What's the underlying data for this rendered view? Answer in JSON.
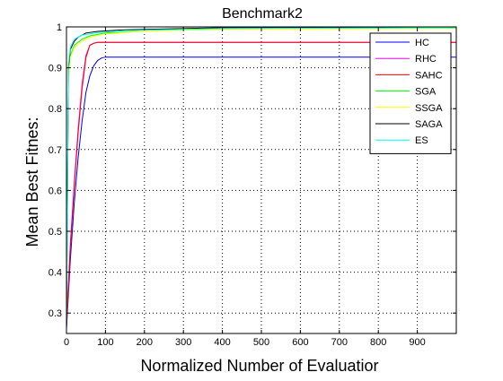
{
  "chart_data": {
    "type": "line",
    "title": "Benchmark2",
    "xlabel": "Normalized Number of Evaluatior",
    "ylabel": "Mean Best Fitnes:",
    "xlim": [
      0,
      1000
    ],
    "ylim": [
      0.25,
      1.0
    ],
    "xticks": [
      0,
      100,
      200,
      300,
      400,
      500,
      600,
      700,
      800,
      900
    ],
    "xtick_labels": [
      "0",
      "100",
      "200",
      "300",
      "400",
      "500",
      "600",
      "700",
      "800",
      "900"
    ],
    "yticks": [
      0.3,
      0.4,
      0.5,
      0.6,
      0.7,
      0.8,
      0.9,
      1.0
    ],
    "ytick_labels": [
      "0.3",
      "0.4",
      "0.5",
      "0.6",
      "0.7",
      "0.8",
      "0.9",
      "1"
    ],
    "grid": true,
    "grid_style": "dotted",
    "legend_position": "top-right",
    "series": [
      {
        "name": "HC",
        "color": "#0000ff",
        "points": [
          [
            0,
            0.26
          ],
          [
            10,
            0.43
          ],
          [
            20,
            0.57
          ],
          [
            30,
            0.68
          ],
          [
            40,
            0.77
          ],
          [
            50,
            0.84
          ],
          [
            60,
            0.88
          ],
          [
            70,
            0.905
          ],
          [
            80,
            0.918
          ],
          [
            90,
            0.924
          ],
          [
            100,
            0.926
          ],
          [
            1000,
            0.926
          ]
        ]
      },
      {
        "name": "RHC",
        "color": "#ff00ff",
        "points": [
          [
            0,
            0.27
          ],
          [
            10,
            0.47
          ],
          [
            20,
            0.62
          ],
          [
            30,
            0.75
          ],
          [
            40,
            0.86
          ],
          [
            50,
            0.93
          ],
          [
            60,
            0.955
          ],
          [
            70,
            0.96
          ],
          [
            80,
            0.962
          ],
          [
            1000,
            0.962
          ]
        ]
      },
      {
        "name": "SAHC",
        "color": "#ff0000",
        "points": [
          [
            0,
            0.27
          ],
          [
            10,
            0.46
          ],
          [
            20,
            0.61
          ],
          [
            30,
            0.74
          ],
          [
            40,
            0.85
          ],
          [
            50,
            0.925
          ],
          [
            60,
            0.955
          ],
          [
            70,
            0.96
          ],
          [
            80,
            0.962
          ],
          [
            1000,
            0.962
          ]
        ]
      },
      {
        "name": "SGA",
        "color": "#00ff00",
        "points": [
          [
            0,
            0.27
          ],
          [
            5,
            0.88
          ],
          [
            10,
            0.93
          ],
          [
            20,
            0.955
          ],
          [
            40,
            0.97
          ],
          [
            60,
            0.978
          ],
          [
            100,
            0.985
          ],
          [
            200,
            0.99
          ],
          [
            400,
            0.995
          ],
          [
            1000,
            0.997
          ]
        ]
      },
      {
        "name": "SSGA",
        "color": "#ffff00",
        "points": [
          [
            0,
            0.27
          ],
          [
            5,
            0.87
          ],
          [
            10,
            0.925
          ],
          [
            20,
            0.95
          ],
          [
            40,
            0.965
          ],
          [
            60,
            0.975
          ],
          [
            100,
            0.983
          ],
          [
            200,
            0.99
          ],
          [
            400,
            0.994
          ],
          [
            1000,
            0.996
          ]
        ]
      },
      {
        "name": "SAGA",
        "color": "#000000",
        "points": [
          [
            0,
            0.27
          ],
          [
            5,
            0.9
          ],
          [
            10,
            0.945
          ],
          [
            20,
            0.965
          ],
          [
            30,
            0.975
          ],
          [
            50,
            0.985
          ],
          [
            80,
            0.989
          ],
          [
            150,
            0.993
          ],
          [
            400,
            0.998
          ],
          [
            1000,
            0.999
          ]
        ]
      },
      {
        "name": "ES",
        "color": "#00ffff",
        "points": [
          [
            0,
            0.27
          ],
          [
            5,
            0.91
          ],
          [
            10,
            0.95
          ],
          [
            20,
            0.97
          ],
          [
            40,
            0.98
          ],
          [
            80,
            0.986
          ],
          [
            150,
            0.991
          ],
          [
            400,
            0.996
          ],
          [
            1000,
            0.998
          ]
        ]
      }
    ]
  }
}
